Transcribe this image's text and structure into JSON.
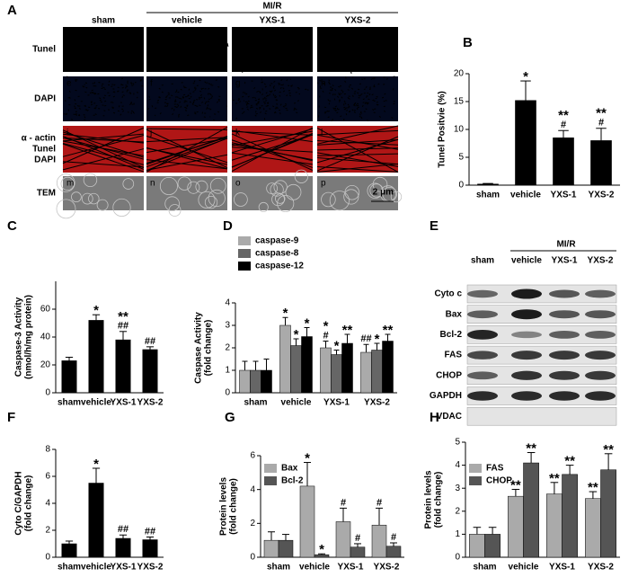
{
  "panel_a": {
    "label": "A",
    "group_label": "MI/R",
    "columns": [
      "sham",
      "vehicle",
      "YXS-1",
      "YXS-2"
    ],
    "rows": [
      [
        "Tunel"
      ],
      [
        "DAPI"
      ],
      [
        "α - actin",
        "Tunel",
        "DAPI"
      ],
      [
        "TEM"
      ]
    ],
    "tiles": [
      "a",
      "b",
      "c",
      "d",
      "e",
      "f",
      "g",
      "h",
      "i",
      "j",
      "k",
      "l",
      "m",
      "n",
      "o",
      "p"
    ],
    "scale_bars": [
      "50 μm",
      "2 μm"
    ]
  },
  "panel_e": {
    "label": "E",
    "group_label": "MI/R",
    "columns": [
      "sham",
      "vehicle",
      "YXS-1",
      "YXS-2"
    ],
    "rows": [
      "Cyto c",
      "Bax",
      "Bcl-2",
      "FAS",
      "CHOP",
      "GAPDH",
      "VDAC"
    ]
  },
  "chart_data": [
    {
      "type": "bar",
      "label": "B",
      "ylabel": [
        "Tunel Positvie (%)"
      ],
      "categories": [
        "sham",
        "vehicle",
        "YXS-1",
        "YXS-2"
      ],
      "values": [
        0.2,
        15.2,
        8.5,
        8.0
      ],
      "errors": [
        0.1,
        3.5,
        1.3,
        2.2
      ],
      "color": "#000000",
      "annotations": [
        null,
        [
          "*"
        ],
        [
          "**",
          "#"
        ],
        [
          "**",
          "#"
        ]
      ],
      "ylim": [
        0,
        20
      ],
      "yticks": [
        0,
        5,
        10,
        15,
        20
      ]
    },
    {
      "type": "bar",
      "label": "C",
      "ylabel": [
        "Caspase-3 Activity",
        "(nmol/h/mg protein)"
      ],
      "categories": [
        "sham",
        "vehicle",
        "YXS-1",
        "YXS-2"
      ],
      "values": [
        23,
        52,
        38,
        31
      ],
      "errors": [
        2.5,
        4,
        6,
        2
      ],
      "color": "#000000",
      "annotations": [
        null,
        [
          "*"
        ],
        [
          "**",
          "##"
        ],
        [
          "##"
        ]
      ],
      "ylim": [
        0,
        80
      ],
      "yticks": [
        0,
        20,
        40,
        60
      ]
    },
    {
      "type": "bar",
      "label": "D",
      "ylabel": [
        "Caspase Activity",
        "(fold change)"
      ],
      "categories": [
        "sham",
        "vehicle",
        "YXS-1",
        "YXS-2"
      ],
      "series": [
        {
          "name": "caspase-9",
          "color": "#aaaaaa",
          "values": [
            1.0,
            3.0,
            2.0,
            1.8
          ],
          "errors": [
            0.4,
            0.35,
            0.3,
            0.35
          ],
          "annotations": [
            null,
            [
              "*"
            ],
            [
              "*",
              "#"
            ],
            [
              "##"
            ]
          ]
        },
        {
          "name": "caspase-8",
          "color": "#666666",
          "values": [
            1.0,
            2.1,
            1.7,
            1.9
          ],
          "errors": [
            0.4,
            0.3,
            0.2,
            0.3
          ],
          "annotations": [
            null,
            [
              "*"
            ],
            [
              "*"
            ],
            [
              "*"
            ]
          ]
        },
        {
          "name": "caspase-12",
          "color": "#000000",
          "values": [
            1.0,
            2.5,
            2.2,
            2.3
          ],
          "errors": [
            0.5,
            0.4,
            0.4,
            0.3
          ],
          "annotations": [
            null,
            [
              "*"
            ],
            [
              "**"
            ],
            [
              "**"
            ]
          ]
        }
      ],
      "ylim": [
        0,
        4
      ],
      "yticks": [
        0,
        1,
        2,
        3,
        4
      ],
      "legend": "upper left"
    },
    {
      "type": "bar",
      "label": "F",
      "ylabel": [
        "Cyto C/GAPDH",
        "(fold change)"
      ],
      "categories": [
        "sham",
        "vehicle",
        "YXS-1",
        "YXS-2"
      ],
      "values": [
        1.0,
        5.5,
        1.4,
        1.3
      ],
      "errors": [
        0.2,
        1.1,
        0.25,
        0.2
      ],
      "color": "#000000",
      "annotations": [
        null,
        [
          "*"
        ],
        [
          "##"
        ],
        [
          "##"
        ]
      ],
      "ylim": [
        0,
        8
      ],
      "yticks": [
        0,
        2,
        4,
        6,
        8
      ]
    },
    {
      "type": "bar",
      "label": "G",
      "ylabel": [
        "Protein levels",
        "(fold change)"
      ],
      "categories": [
        "sham",
        "vehicle",
        "YXS-1",
        "YXS-2"
      ],
      "series": [
        {
          "name": "Bax",
          "color": "#aaaaaa",
          "values": [
            1.0,
            4.2,
            2.1,
            1.9
          ],
          "errors": [
            0.5,
            1.4,
            0.8,
            1.0
          ],
          "annotations": [
            null,
            [
              "*"
            ],
            [
              "#"
            ],
            [
              "#"
            ]
          ]
        },
        {
          "name": "Bcl-2",
          "color": "#555555",
          "values": [
            1.0,
            0.15,
            0.6,
            0.65
          ],
          "errors": [
            0.35,
            0.05,
            0.2,
            0.2
          ],
          "annotations": [
            null,
            [
              "*"
            ],
            [
              "#"
            ],
            [
              "#"
            ]
          ]
        }
      ],
      "ylim": [
        0,
        6
      ],
      "yticks": [
        0,
        2,
        4,
        6
      ],
      "legend": "upper left"
    },
    {
      "type": "bar",
      "label": "H",
      "ylabel": [
        "Protein levels",
        "(fold change)"
      ],
      "categories": [
        "sham",
        "vehicle",
        "YXS-1",
        "YXS-2"
      ],
      "series": [
        {
          "name": "FAS",
          "color": "#aaaaaa",
          "values": [
            1.0,
            2.65,
            2.75,
            2.55
          ],
          "errors": [
            0.3,
            0.3,
            0.5,
            0.3
          ],
          "annotations": [
            null,
            [
              "**"
            ],
            [
              "**"
            ],
            [
              "**"
            ]
          ]
        },
        {
          "name": "CHOP",
          "color": "#555555",
          "values": [
            1.0,
            4.1,
            3.6,
            3.8
          ],
          "errors": [
            0.3,
            0.45,
            0.4,
            0.7
          ],
          "annotations": [
            null,
            [
              "**"
            ],
            [
              "**"
            ],
            [
              "**"
            ]
          ]
        }
      ],
      "ylim": [
        0,
        5
      ],
      "yticks": [
        0,
        1,
        2,
        3,
        4,
        5
      ],
      "legend": "upper left"
    }
  ]
}
